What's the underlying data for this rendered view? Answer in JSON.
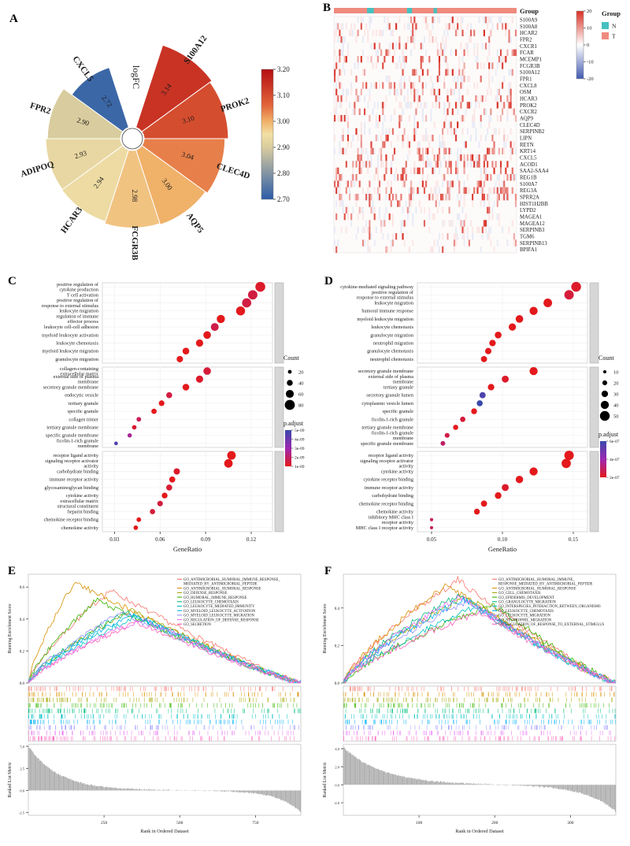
{
  "panels": {
    "A": "A",
    "B": "B",
    "C": "C",
    "D": "D",
    "E": "E",
    "F": "F"
  },
  "chart_data": [
    {
      "id": "A",
      "type": "rose",
      "center_label": "logFC",
      "genes": [
        "S100A12",
        "PROK2",
        "CLEC4D",
        "AQP5",
        "FCGR3B",
        "HCAR3",
        "ADIPOQ",
        "FPR2",
        "CXCL5"
      ],
      "values": [
        3.14,
        3.1,
        3.04,
        3.0,
        2.98,
        2.94,
        2.93,
        2.9,
        2.72
      ],
      "colorbar": {
        "min": 2.7,
        "max": 3.2,
        "ticks": [
          "3.20",
          "3.10",
          "3.00",
          "2.90",
          "2.80",
          "2.70"
        ],
        "stops": [
          [
            2.7,
            "#2b5ca8"
          ],
          [
            2.9,
            "#d9cc9e"
          ],
          [
            2.95,
            "#f2dfa4"
          ],
          [
            3.0,
            "#f0b169"
          ],
          [
            3.06,
            "#e2663b"
          ],
          [
            3.2,
            "#b50d12"
          ]
        ]
      }
    },
    {
      "id": "B",
      "type": "heatmap",
      "genes": [
        "S100A9",
        "S100A8",
        "HCAR2",
        "FPR2",
        "CXCR1",
        "FCAR",
        "MCEMP1",
        "FCGR3B",
        "S100A12",
        "FPR1",
        "CXCL8",
        "OSM",
        "HCAR3",
        "PROK2",
        "CXCR2",
        "AQP9",
        "CLEC4D",
        "SERPINB2",
        "LIPN",
        "RETN",
        "KRT14",
        "CXCL5",
        "ACOD1",
        "SAA2-SAA4",
        "REG1B",
        "S100A7",
        "REG3A",
        "SPRR2A",
        "HIST1H2BB",
        "LYPD2",
        "MAGEA1",
        "MAGEA12",
        "SERPINB3",
        "TGM6",
        "SERPINB13",
        "BPIFA1"
      ],
      "n_samples": 110,
      "n_columns": [
        20,
        21,
        22,
        23,
        44,
        45,
        46,
        60,
        61
      ],
      "legend": {
        "group_title": "Group",
        "groups": [
          {
            "name": "N",
            "color": "#45c1c0"
          },
          {
            "name": "T",
            "color": "#ef8a7e"
          }
        ],
        "scale_ticks": [
          "20",
          "10",
          "0",
          "-10",
          "-20"
        ],
        "scale_stops": [
          [
            -20,
            "#4059b0"
          ],
          [
            0,
            "#ffffff"
          ],
          [
            20,
            "#d93025"
          ]
        ]
      }
    },
    {
      "id": "C",
      "type": "dotplot",
      "xlabel": "GeneRatio",
      "xlim": [
        0.022,
        0.134
      ],
      "x_ticks": [
        "0.03",
        "0.06",
        "0.09",
        "0.12"
      ],
      "size_k": [
        1.1,
        0.066
      ],
      "legend_count_title": "Count",
      "count_legend": [
        20,
        40,
        60,
        80
      ],
      "legend_padjust_title": "p.adjust",
      "padjust": {
        "ticks": [
          "5e-09",
          "4e-09",
          "3e-09",
          "2e-09",
          "1e-09"
        ],
        "stops": [
          [
            1e-09,
            "#e3191c"
          ],
          [
            3e-09,
            "#9c27b0"
          ],
          [
            5e-09,
            "#3949ab"
          ]
        ]
      },
      "facets": [
        {
          "name": "BP",
          "terms": [
            {
              "label": "positive regulation of\ncytokine production",
              "ratio": 0.126,
              "count": 78,
              "padj": 1.2e-09
            },
            {
              "label": "T cell activation",
              "ratio": 0.121,
              "count": 74,
              "padj": 1.5e-09
            },
            {
              "label": "positive regulation of\nresponse to external stimulus",
              "ratio": 0.117,
              "count": 72,
              "padj": 1.5e-09
            },
            {
              "label": "leukocyte migration",
              "ratio": 0.113,
              "count": 70,
              "padj": 1e-09
            },
            {
              "label": "regulation of immune\neffector process",
              "ratio": 0.1,
              "count": 62,
              "padj": 1e-09
            },
            {
              "label": "leukocyte cell-cell adhesion",
              "ratio": 0.096,
              "count": 59,
              "padj": 1.6e-09
            },
            {
              "label": "myeloid leukocyte activation",
              "ratio": 0.091,
              "count": 56,
              "padj": 1e-09
            },
            {
              "label": "leukocyte chemotaxis",
              "ratio": 0.086,
              "count": 53,
              "padj": 1e-09
            },
            {
              "label": "myeloid leukocyte migration",
              "ratio": 0.077,
              "count": 48,
              "padj": 1e-09
            },
            {
              "label": "granulocyte migration",
              "ratio": 0.073,
              "count": 45,
              "padj": 1e-09
            }
          ]
        },
        {
          "name": "CC",
          "terms": [
            {
              "label": "collagen-containing\nextracellular matrix",
              "ratio": 0.091,
              "count": 56,
              "padj": 1.4e-09
            },
            {
              "label": "external side of plasma\nmembrane",
              "ratio": 0.086,
              "count": 53,
              "padj": 1.2e-09
            },
            {
              "label": "secretory granule membrane",
              "ratio": 0.077,
              "count": 48,
              "padj": 1e-09
            },
            {
              "label": "endocytic vesicle",
              "ratio": 0.066,
              "count": 41,
              "padj": 1.5e-09
            },
            {
              "label": "tertiary granule",
              "ratio": 0.061,
              "count": 38,
              "padj": 1e-09
            },
            {
              "label": "specific granule",
              "ratio": 0.056,
              "count": 35,
              "padj": 1e-09
            },
            {
              "label": "collagen trimer",
              "ratio": 0.046,
              "count": 28,
              "padj": 1.8e-09
            },
            {
              "label": "tertiary granule membrane",
              "ratio": 0.043,
              "count": 27,
              "padj": 1.3e-09
            },
            {
              "label": "specific granule membrane",
              "ratio": 0.04,
              "count": 25,
              "padj": 2.6e-09
            },
            {
              "label": "ficolin-1-rich granule\nmembrane",
              "ratio": 0.031,
              "count": 19,
              "padj": 4.6e-09
            }
          ]
        },
        {
          "name": "MF",
          "terms": [
            {
              "label": "receptor ligand activity",
              "ratio": 0.107,
              "count": 66,
              "padj": 1e-09
            },
            {
              "label": "signaling receptor activator\nactivity",
              "ratio": 0.105,
              "count": 65,
              "padj": 1e-09
            },
            {
              "label": "carbohydrate binding",
              "ratio": 0.071,
              "count": 44,
              "padj": 1.2e-09
            },
            {
              "label": "immune receptor activity",
              "ratio": 0.068,
              "count": 42,
              "padj": 1e-09
            },
            {
              "label": "glycosaminoglycan binding",
              "ratio": 0.066,
              "count": 41,
              "padj": 1.3e-09
            },
            {
              "label": "cytokine activity",
              "ratio": 0.063,
              "count": 39,
              "padj": 1e-09
            },
            {
              "label": "extracellular matrix\nstructural constituent",
              "ratio": 0.06,
              "count": 37,
              "padj": 1.5e-09
            },
            {
              "label": "heparin binding",
              "ratio": 0.055,
              "count": 34,
              "padj": 1.4e-09
            },
            {
              "label": "chemokine receptor binding",
              "ratio": 0.046,
              "count": 28,
              "padj": 1e-09
            },
            {
              "label": "chemokine activity",
              "ratio": 0.044,
              "count": 27,
              "padj": 1e-09
            }
          ]
        }
      ]
    },
    {
      "id": "D",
      "type": "dotplot",
      "xlabel": "GeneRatio",
      "xlim": [
        0.04,
        0.16
      ],
      "x_ticks": [
        "0.05",
        "0.10",
        "0.15"
      ],
      "size_k": [
        1.0,
        0.104
      ],
      "legend_count_title": "Count",
      "count_legend": [
        10,
        20,
        30,
        40,
        50
      ],
      "legend_padjust_title": "p.adjust",
      "padjust": {
        "ticks": [
          "6e-07",
          "4e-07",
          "2e-07"
        ],
        "stops": [
          [
            2e-07,
            "#e3191c"
          ],
          [
            4e-07,
            "#9c27b0"
          ],
          [
            6e-07,
            "#3949ab"
          ]
        ]
      },
      "facets": [
        {
          "name": "BP",
          "terms": [
            {
              "label": "cytokine-mediated signaling pathway",
              "ratio": 0.152,
              "count": 50,
              "padj": 2.2e-07
            },
            {
              "label": "positive regulation of\nresponse to external stimulus",
              "ratio": 0.147,
              "count": 48,
              "padj": 2.4e-07
            },
            {
              "label": "leukocyte migration",
              "ratio": 0.132,
              "count": 43,
              "padj": 2e-07
            },
            {
              "label": "humoral immune response",
              "ratio": 0.122,
              "count": 40,
              "padj": 2e-07
            },
            {
              "label": "myeloid leukocyte migration",
              "ratio": 0.112,
              "count": 37,
              "padj": 2e-07
            },
            {
              "label": "leukocyte chemotaxis",
              "ratio": 0.107,
              "count": 35,
              "padj": 2e-07
            },
            {
              "label": "granulocyte migration",
              "ratio": 0.097,
              "count": 32,
              "padj": 2e-07
            },
            {
              "label": "neutrophil migration",
              "ratio": 0.093,
              "count": 30,
              "padj": 2e-07
            },
            {
              "label": "granulocyte chemotaxis",
              "ratio": 0.09,
              "count": 29,
              "padj": 2e-07
            },
            {
              "label": "neutrophil chemotaxis",
              "ratio": 0.087,
              "count": 28,
              "padj": 2e-07
            }
          ]
        },
        {
          "name": "CC",
          "terms": [
            {
              "label": "secretory granule membrane",
              "ratio": 0.122,
              "count": 40,
              "padj": 2e-07
            },
            {
              "label": "external side of plasma\nmembrane",
              "ratio": 0.102,
              "count": 33,
              "padj": 2.2e-07
            },
            {
              "label": "tertiary granule",
              "ratio": 0.092,
              "count": 30,
              "padj": 2e-07
            },
            {
              "label": "secretory granule lumen",
              "ratio": 0.086,
              "count": 28,
              "padj": 5.6e-07
            },
            {
              "label": "cytoplasmic vesicle lumen",
              "ratio": 0.084,
              "count": 27,
              "padj": 6e-07
            },
            {
              "label": "specific granule",
              "ratio": 0.08,
              "count": 26,
              "padj": 2e-07
            },
            {
              "label": "ficolin-1-rich granule",
              "ratio": 0.072,
              "count": 23,
              "padj": 2.4e-07
            },
            {
              "label": "tertiary granule membrane",
              "ratio": 0.067,
              "count": 22,
              "padj": 2e-07
            },
            {
              "label": "ficolin-1-rich granule\nmembrane",
              "ratio": 0.061,
              "count": 20,
              "padj": 2.6e-07
            },
            {
              "label": "specific granule membrane",
              "ratio": 0.058,
              "count": 19,
              "padj": 3e-07
            }
          ]
        },
        {
          "name": "MF",
          "terms": [
            {
              "label": "receptor ligand activity",
              "ratio": 0.147,
              "count": 48,
              "padj": 2e-07
            },
            {
              "label": "signaling receptor activator\nactivity",
              "ratio": 0.145,
              "count": 47,
              "padj": 2e-07
            },
            {
              "label": "cytokine activity",
              "ratio": 0.122,
              "count": 40,
              "padj": 2e-07
            },
            {
              "label": "cytokine receptor binding",
              "ratio": 0.112,
              "count": 36,
              "padj": 2e-07
            },
            {
              "label": "immune receptor activity",
              "ratio": 0.102,
              "count": 33,
              "padj": 2.2e-07
            },
            {
              "label": "carbohydrate binding",
              "ratio": 0.097,
              "count": 31,
              "padj": 2e-07
            },
            {
              "label": "chemokine receptor binding",
              "ratio": 0.087,
              "count": 28,
              "padj": 2e-07
            },
            {
              "label": "chemokine activity",
              "ratio": 0.082,
              "count": 26,
              "padj": 2e-07
            },
            {
              "label": "inhibitory MHC class I\nreceptor activity",
              "ratio": 0.05,
              "count": 10,
              "padj": 2.8e-07
            },
            {
              "label": "MHC class I receptor activity",
              "ratio": 0.05,
              "count": 10,
              "padj": 2.8e-07
            }
          ]
        }
      ]
    },
    {
      "id": "E",
      "type": "gsea",
      "seed": 7,
      "ylabel_es": "Running Enrichment Score",
      "ylabel_rm": "Ranked List Metric",
      "xlabel": "Rank in Ordered Dataset",
      "n_ranks": 900,
      "x_ticks": [
        250,
        500,
        750
      ],
      "es_ticks": [
        0.0,
        0.2,
        0.4,
        0.6
      ],
      "es_max": 0.68,
      "rm_ticks": [
        5.0,
        2.5,
        0.0,
        -2.5
      ],
      "rm_max": 5.2,
      "rm_min": -2.8,
      "rm_A": 5.0,
      "rm_B": 2.5,
      "rm_k1": 9,
      "rm_k2": 12,
      "tick_count": 85,
      "tick_bias": 1.5,
      "legend_x": 225,
      "series": [
        {
          "label_lines": [
            "GO_ANTIMICROBIAL_HUMORAL_IMMUNE_RESPONSE_",
            "MEDIATED_BY_ANTIMICROBIAL_PEPTIDE"
          ],
          "color": "#F8766D",
          "peak": 0.58,
          "pos": 0.3
        },
        {
          "label_lines": [
            "GO_ANTIMICROBIAL_HUMORAL_RESPONSE"
          ],
          "color": "#D89000",
          "peak": 0.63,
          "pos": 0.17
        },
        {
          "label_lines": [
            "GO_DEFENSE_RESPONSE"
          ],
          "color": "#A3A500",
          "peak": 0.45,
          "pos": 0.38
        },
        {
          "label_lines": [
            "GO_HUMORAL_IMMUNE_RESPONSE"
          ],
          "color": "#39B600",
          "peak": 0.52,
          "pos": 0.25
        },
        {
          "label_lines": [
            "GO_LEUKOCYTE_CHEMOTAXIS"
          ],
          "color": "#00BF7D",
          "peak": 0.44,
          "pos": 0.36
        },
        {
          "label_lines": [
            "GO_LEUKOCYTE_MEDIATED_IMMUNITY"
          ],
          "color": "#00BFC4",
          "peak": 0.42,
          "pos": 0.4
        },
        {
          "label_lines": [
            "GO_MYELOID_LEUKOCYTE_ACTIVATION"
          ],
          "color": "#00B0F6",
          "peak": 0.43,
          "pos": 0.38
        },
        {
          "label_lines": [
            "GO_MYELOID_LEUKOCYTE_MIGRATION"
          ],
          "color": "#9590FF",
          "peak": 0.44,
          "pos": 0.34
        },
        {
          "label_lines": [
            "GO_REGULATION_OF_DEFENSE_RESPONSE"
          ],
          "color": "#E76BF3",
          "peak": 0.4,
          "pos": 0.42
        },
        {
          "label_lines": [
            "GO_SECRETION"
          ],
          "color": "#FF62BC",
          "peak": 0.38,
          "pos": 0.4
        }
      ]
    },
    {
      "id": "F",
      "type": "gsea",
      "seed": 21,
      "ylabel_es": "Running Enrichment Score",
      "ylabel_rm": "Ranked List Metric",
      "xlabel": "Rank in Ordered Dataset",
      "n_ranks": 360,
      "x_ticks": [
        100,
        200,
        300
      ],
      "es_ticks": [
        0.0,
        0.2,
        0.4
      ],
      "es_max": 0.58,
      "rm_ticks": [
        4.0,
        2.0,
        0.0,
        -2.0
      ],
      "rm_max": 4.5,
      "rm_min": -3.4,
      "rm_A": 4.2,
      "rm_B": 3.0,
      "rm_k1": 7,
      "rm_k2": 9,
      "tick_count": 85,
      "tick_bias": 1.15,
      "legend_x": 225,
      "series": [
        {
          "label_lines": [
            "GO_ANTIMICROBIAL_HUMORAL_IMMUNE_",
            "RESPONSE_MEDIATED_BY_ANTIMICROBIAL_PEPTIDE"
          ],
          "color": "#F8766D",
          "peak": 0.55,
          "pos": 0.42
        },
        {
          "label_lines": [
            "GO_ANTIMICROBIAL_HUMORAL_RESPONSE"
          ],
          "color": "#D89000",
          "peak": 0.52,
          "pos": 0.38
        },
        {
          "label_lines": [
            "GO_CELL_CHEMOTAXIS"
          ],
          "color": "#A3A500",
          "peak": 0.46,
          "pos": 0.45
        },
        {
          "label_lines": [
            "GO_EPIDERMIS_DEVELOPMENT"
          ],
          "color": "#39B600",
          "peak": 0.42,
          "pos": 0.55
        },
        {
          "label_lines": [
            "GO_GRANULOCYTE_MIGRATION"
          ],
          "color": "#00BF7D",
          "peak": 0.47,
          "pos": 0.42
        },
        {
          "label_lines": [
            "GO_INTERSPECIES_INTERACTION_BETWEEN_ORGANISMS"
          ],
          "color": "#00BFC4",
          "peak": 0.4,
          "pos": 0.48
        },
        {
          "label_lines": [
            "GO_LEUKOCYTE_CHEMOTAXIS"
          ],
          "color": "#00B0F6",
          "peak": 0.45,
          "pos": 0.44
        },
        {
          "label_lines": [
            "GO_LEUKOCYTE_MIGRATION"
          ],
          "color": "#9590FF",
          "peak": 0.44,
          "pos": 0.46
        },
        {
          "label_lines": [
            "GO_NEUTROPHIL_MIGRATION"
          ],
          "color": "#E76BF3",
          "peak": 0.46,
          "pos": 0.43
        },
        {
          "label_lines": [
            "GO_REGULATION_OF_RESPONSE_TO_EXTERNAL_STIMULUS"
          ],
          "color": "#FF62BC",
          "peak": 0.38,
          "pos": 0.5
        }
      ]
    }
  ]
}
